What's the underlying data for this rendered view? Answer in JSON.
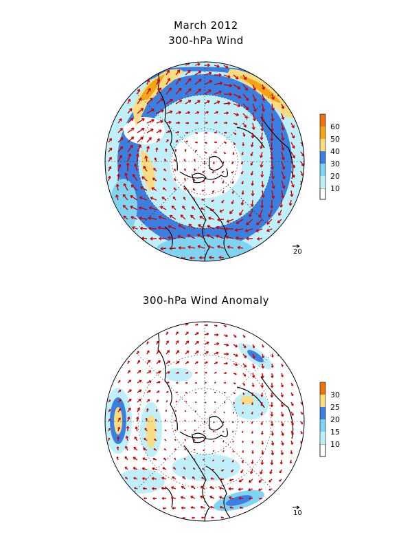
{
  "title": "March 2012",
  "panels": [
    {
      "subtitle": "300-hPa Wind",
      "reference_vector": "20",
      "colorbar": {
        "labels": [
          "10",
          "20",
          "30",
          "40",
          "50",
          "60"
        ],
        "colors": [
          "#ffffff",
          "#bff0fa",
          "#7fd4f2",
          "#3b7fe0",
          "#fadc82",
          "#f5a418",
          "#f07010"
        ]
      }
    },
    {
      "subtitle": "300-hPa Wind Anomaly",
      "reference_vector": "10",
      "colorbar": {
        "labels": [
          "10",
          "15",
          "20",
          "25",
          "30"
        ],
        "colors": [
          "#ffffff",
          "#bff0fa",
          "#7fd4f2",
          "#3b7fe0",
          "#fadc82",
          "#f5a418",
          "#f07010"
        ]
      }
    }
  ],
  "colors": {
    "vector": "#cc0000",
    "coast": "#000000"
  }
}
